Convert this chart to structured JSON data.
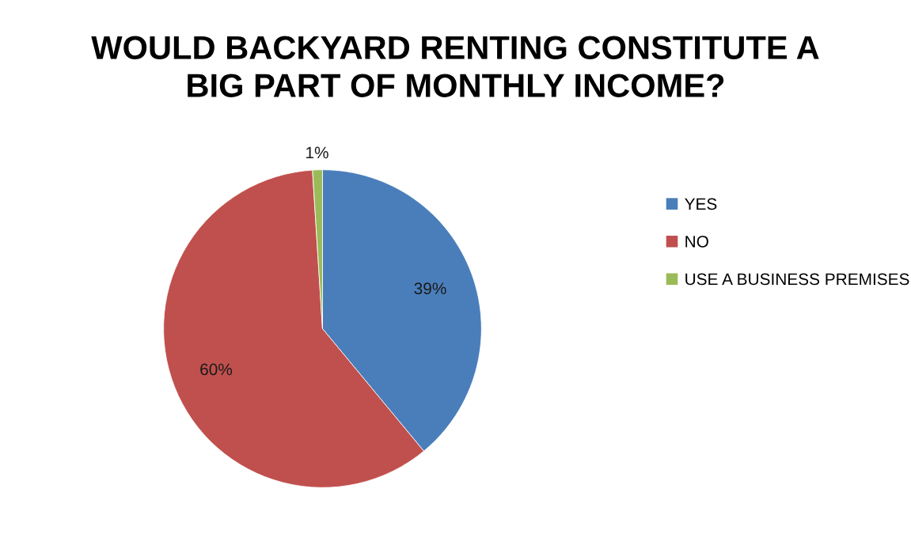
{
  "chart_data": {
    "type": "pie",
    "title": "WOULD BACKYARD RENTING CONSTITUTE A\nBIG PART OF MONTHLY INCOME?",
    "categories": [
      "YES",
      "NO",
      "USE A BUSINESS PREMISES"
    ],
    "values": [
      39,
      60,
      1
    ],
    "colors": [
      "#4a7ebb",
      "#c0504d",
      "#9bbb59"
    ],
    "value_labels": [
      "39%",
      "60%",
      "1%"
    ],
    "legend": "right"
  }
}
